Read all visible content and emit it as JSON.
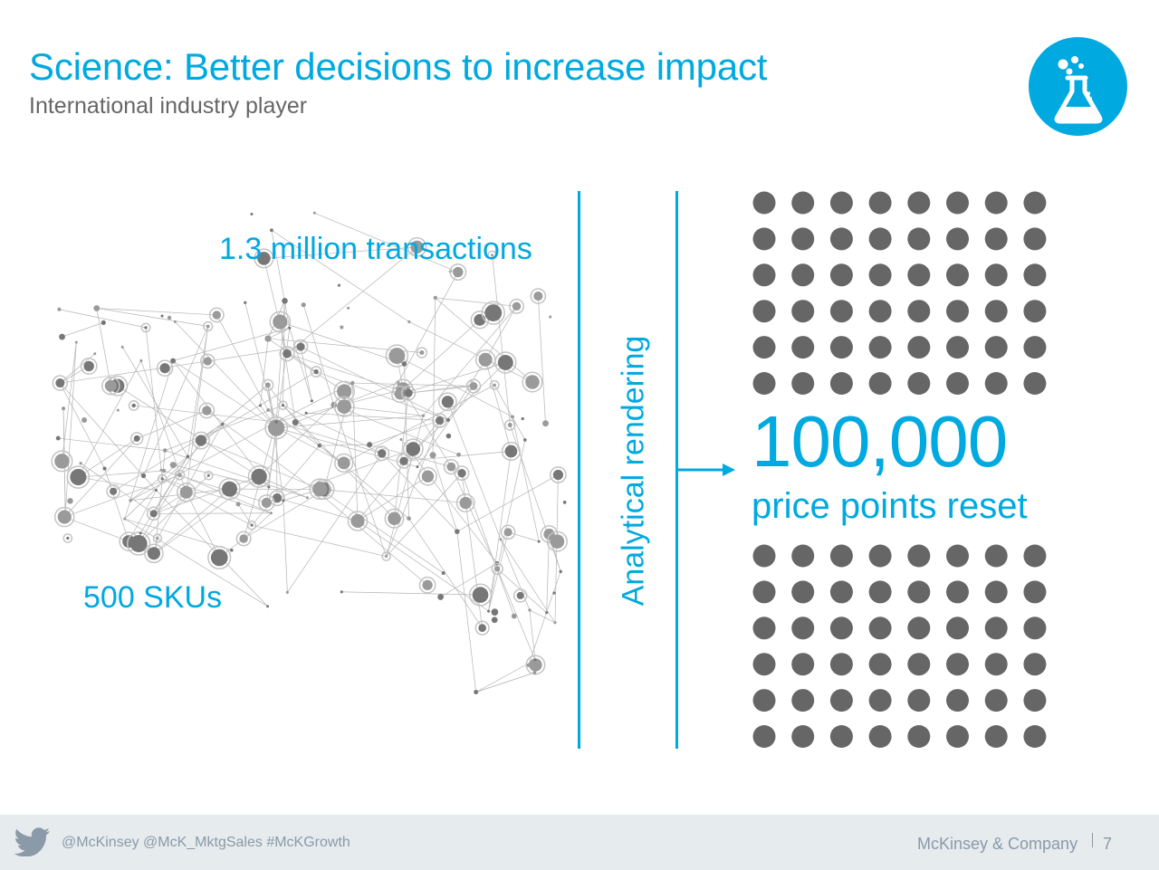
{
  "header": {
    "title": "Science: Better decisions to increase impact",
    "subtitle": "International industry player",
    "badge_icon": "flask-icon"
  },
  "network": {
    "transactions_label": "1.3 million transactions",
    "skus_label": "500 SKUs",
    "illustration_icon": "network-graph"
  },
  "process": {
    "label": "Analytical rendering",
    "arrow_icon": "arrow-right-icon"
  },
  "result": {
    "value": "100,000",
    "caption": "price points reset",
    "dot_icon": "dot",
    "dots_above": 48,
    "dots_below": 48
  },
  "footer": {
    "social_icon": "twitter-icon",
    "handles": "@McKinsey @McK_MktgSales   #McKGrowth",
    "company": "McKinsey & Company",
    "page": "7"
  },
  "colors": {
    "accent": "#00a9e0",
    "dot": "#666666",
    "subtitle": "#666666",
    "footer_bg": "#e6ebee",
    "footer_text": "#8a9aa8",
    "network": "#8c8c8c"
  }
}
